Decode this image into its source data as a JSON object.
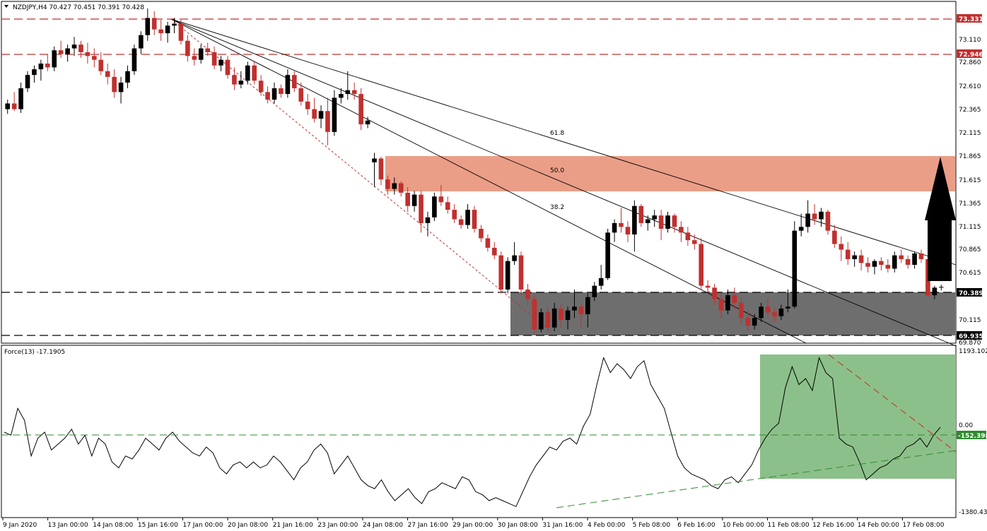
{
  "main_header": {
    "title": "NZDJPY,H4  70.427 70.451 70.391 70.428"
  },
  "force_header": {
    "title": "Force(13) -17.1905"
  },
  "colors": {
    "bull_candle": "#000000",
    "bear_candle": "#c0302e",
    "resistance_zone": "#e8937a",
    "support_zone": "#6e6e6e",
    "force_zone": "#8cc08a",
    "dashed_red": "#c0302e",
    "dashed_green": "#2e8b2e",
    "label_red_bg": "#c0302e",
    "label_black_bg": "#000000",
    "label_green_bg": "#2e8b2e"
  },
  "price_axis": {
    "ticks": [
      "73.110",
      "72.860",
      "72.610",
      "72.365",
      "72.115",
      "71.865",
      "71.615",
      "71.365",
      "71.115",
      "70.865",
      "70.615",
      "70.115",
      "69.870"
    ],
    "labels": [
      {
        "text": "73.331",
        "style": "red"
      },
      {
        "text": "72.946",
        "style": "red"
      },
      {
        "text": "70.389",
        "style": "black"
      },
      {
        "text": "69.935",
        "style": "black"
      }
    ]
  },
  "force_axis": {
    "ticks": [
      "1193.102",
      "0.00",
      "-1380.43"
    ],
    "labels": [
      {
        "text": "-152.398",
        "style": "green"
      }
    ]
  },
  "time_axis": {
    "labels": [
      "9 Jan 2020",
      "13 Jan 00:00",
      "14 Jan 08:00",
      "15 Jan 16:00",
      "17 Jan 00:00",
      "20 Jan 08:00",
      "21 Jan 16:00",
      "23 Jan 00:00",
      "24 Jan 08:00",
      "27 Jan 16:00",
      "29 Jan 00:00",
      "30 Jan 08:00",
      "31 Jan 16:00",
      "4 Feb 00:00",
      "5 Feb 08:00",
      "6 Feb 16:00",
      "10 Feb 00:00",
      "11 Feb 08:00",
      "12 Feb 16:00",
      "14 Feb 00:00",
      "17 Feb 08:00"
    ]
  },
  "fib_labels": [
    "61.8",
    "50.0",
    "38.2"
  ],
  "chart_data": {
    "type": "candlestick",
    "symbol": "NZDJPY",
    "timeframe": "H4",
    "ohlc_last": {
      "open": 70.427,
      "high": 70.451,
      "low": 70.391,
      "close": 70.428
    },
    "ylim": [
      69.85,
      73.42
    ],
    "horizontal_levels": [
      73.331,
      72.946,
      70.389,
      69.935
    ],
    "resistance_zone": [
      71.49,
      71.87
    ],
    "support_zone": [
      69.935,
      70.389
    ],
    "candles": [
      [
        72.3,
        72.4,
        72.25,
        72.36
      ],
      [
        72.36,
        72.48,
        72.28,
        72.3
      ],
      [
        72.3,
        72.58,
        72.26,
        72.52
      ],
      [
        72.52,
        72.7,
        72.48,
        72.66
      ],
      [
        72.66,
        72.76,
        72.58,
        72.72
      ],
      [
        72.72,
        72.82,
        72.6,
        72.78
      ],
      [
        72.78,
        72.88,
        72.7,
        72.74
      ],
      [
        72.74,
        72.96,
        72.7,
        72.92
      ],
      [
        72.92,
        73.02,
        72.84,
        72.88
      ],
      [
        72.88,
        72.98,
        72.8,
        72.94
      ],
      [
        72.94,
        73.06,
        72.86,
        72.98
      ],
      [
        72.98,
        73.02,
        72.84,
        72.9
      ],
      [
        72.9,
        73.0,
        72.78,
        72.86
      ],
      [
        72.86,
        72.94,
        72.74,
        72.82
      ],
      [
        72.82,
        72.9,
        72.66,
        72.7
      ],
      [
        72.7,
        72.78,
        72.56,
        72.64
      ],
      [
        72.64,
        72.72,
        72.42,
        72.48
      ],
      [
        72.48,
        72.64,
        72.36,
        72.58
      ],
      [
        72.58,
        72.76,
        72.52,
        72.7
      ],
      [
        72.7,
        72.98,
        72.66,
        72.94
      ],
      [
        72.94,
        73.12,
        72.88,
        73.08
      ],
      [
        73.08,
        73.36,
        73.02,
        73.26
      ],
      [
        73.26,
        73.331,
        73.08,
        73.14
      ],
      [
        73.14,
        73.24,
        73.02,
        73.1
      ],
      [
        73.1,
        73.22,
        73.0,
        73.18
      ],
      [
        73.18,
        73.26,
        73.1,
        73.2
      ],
      [
        73.2,
        73.24,
        72.98,
        73.02
      ],
      [
        73.02,
        73.08,
        72.8,
        72.86
      ],
      [
        72.86,
        72.94,
        72.76,
        72.82
      ],
      [
        72.82,
        72.98,
        72.78,
        72.94
      ],
      [
        72.94,
        73.0,
        72.86,
        72.9
      ],
      [
        72.9,
        72.96,
        72.72,
        72.76
      ],
      [
        72.76,
        72.86,
        72.7,
        72.82
      ],
      [
        72.82,
        72.86,
        72.62,
        72.66
      ],
      [
        72.66,
        72.74,
        72.5,
        72.56
      ],
      [
        72.56,
        72.7,
        72.52,
        72.6
      ],
      [
        72.6,
        72.8,
        72.56,
        72.76
      ],
      [
        72.76,
        72.8,
        72.56,
        72.6
      ],
      [
        72.6,
        72.66,
        72.44,
        72.48
      ],
      [
        72.48,
        72.54,
        72.36,
        72.4
      ],
      [
        72.4,
        72.58,
        72.36,
        72.52
      ],
      [
        72.52,
        72.56,
        72.42,
        72.46
      ],
      [
        72.46,
        72.72,
        72.42,
        72.66
      ],
      [
        72.66,
        72.7,
        72.48,
        72.52
      ],
      [
        72.52,
        72.58,
        72.34,
        72.38
      ],
      [
        72.38,
        72.46,
        72.24,
        72.3
      ],
      [
        72.3,
        72.42,
        72.16,
        72.2
      ],
      [
        72.2,
        72.34,
        72.1,
        72.28
      ],
      [
        72.28,
        72.42,
        71.92,
        72.06
      ],
      [
        72.06,
        72.5,
        72.02,
        72.42
      ],
      [
        72.42,
        72.52,
        72.36,
        72.46
      ],
      [
        72.46,
        72.7,
        72.4,
        72.5
      ],
      [
        72.5,
        72.58,
        72.4,
        72.46
      ],
      [
        72.46,
        72.52,
        72.08,
        72.14
      ],
      [
        72.14,
        72.22,
        72.1,
        72.18
      ],
      [
        71.74,
        71.84,
        71.48,
        71.78
      ],
      [
        71.78,
        71.8,
        71.5,
        71.56
      ],
      [
        71.56,
        71.6,
        71.4,
        71.46
      ],
      [
        71.46,
        71.58,
        71.4,
        71.52
      ],
      [
        71.52,
        71.54,
        71.38,
        71.42
      ],
      [
        71.42,
        71.48,
        71.22,
        71.28
      ],
      [
        71.28,
        71.44,
        71.22,
        71.4
      ],
      [
        71.4,
        71.44,
        71.0,
        71.1
      ],
      [
        71.1,
        71.22,
        70.96,
        71.16
      ],
      [
        71.16,
        71.42,
        71.12,
        71.38
      ],
      [
        71.38,
        71.5,
        71.28,
        71.32
      ],
      [
        71.32,
        71.38,
        71.2,
        71.24
      ],
      [
        71.24,
        71.3,
        71.1,
        71.14
      ],
      [
        71.14,
        71.18,
        71.04,
        71.08
      ],
      [
        71.08,
        71.3,
        71.04,
        71.24
      ],
      [
        71.24,
        71.28,
        71.0,
        71.04
      ],
      [
        71.04,
        71.08,
        70.9,
        70.94
      ],
      [
        70.94,
        70.98,
        70.8,
        70.84
      ],
      [
        70.84,
        70.9,
        70.72,
        70.76
      ],
      [
        70.76,
        70.8,
        70.36,
        70.4
      ],
      [
        70.4,
        70.74,
        70.36,
        70.7
      ],
      [
        70.7,
        70.9,
        70.66,
        70.76
      ],
      [
        70.76,
        70.8,
        70.34,
        70.4
      ],
      [
        70.4,
        70.46,
        70.24,
        70.3
      ],
      [
        70.3,
        70.34,
        69.94,
        69.98
      ],
      [
        69.98,
        70.2,
        69.95,
        70.16
      ],
      [
        70.16,
        70.22,
        69.96,
        70.0
      ],
      [
        70.0,
        70.26,
        69.96,
        70.2
      ],
      [
        70.2,
        70.24,
        70.0,
        70.08
      ],
      [
        70.08,
        70.22,
        69.98,
        70.18
      ],
      [
        70.18,
        70.4,
        70.1,
        70.22
      ],
      [
        70.22,
        70.26,
        70.0,
        70.14
      ],
      [
        70.14,
        70.36,
        70.0,
        70.32
      ],
      [
        70.32,
        70.48,
        70.28,
        70.44
      ],
      [
        70.44,
        70.66,
        70.4,
        70.52
      ],
      [
        70.52,
        71.04,
        70.5,
        71.0
      ],
      [
        71.0,
        71.14,
        70.9,
        71.1
      ],
      [
        71.1,
        71.26,
        71.0,
        71.06
      ],
      [
        71.06,
        71.12,
        70.9,
        70.98
      ],
      [
        70.98,
        71.34,
        70.8,
        71.28
      ],
      [
        71.28,
        71.3,
        71.06,
        71.1
      ],
      [
        71.1,
        71.18,
        71.02,
        71.14
      ],
      [
        71.14,
        71.24,
        71.06,
        71.18
      ],
      [
        71.18,
        71.24,
        70.92,
        71.04
      ],
      [
        71.04,
        71.22,
        71.0,
        71.18
      ],
      [
        71.18,
        71.2,
        71.0,
        71.06
      ],
      [
        71.06,
        71.12,
        70.9,
        71.0
      ],
      [
        71.0,
        71.06,
        70.86,
        70.92
      ],
      [
        70.92,
        70.98,
        70.82,
        70.88
      ],
      [
        70.88,
        70.94,
        70.4,
        70.44
      ],
      [
        70.44,
        70.5,
        70.36,
        70.42
      ],
      [
        70.42,
        70.46,
        70.24,
        70.3
      ],
      [
        70.3,
        70.36,
        70.1,
        70.18
      ],
      [
        70.18,
        70.4,
        70.14,
        70.34
      ],
      [
        70.34,
        70.42,
        70.2,
        70.26
      ],
      [
        70.26,
        70.32,
        70.04,
        70.1
      ],
      [
        70.1,
        70.18,
        69.96,
        70.02
      ],
      [
        70.02,
        70.14,
        69.98,
        70.1
      ],
      [
        70.1,
        70.26,
        70.06,
        70.22
      ],
      [
        70.22,
        70.3,
        70.1,
        70.16
      ],
      [
        70.16,
        70.2,
        70.06,
        70.12
      ],
      [
        70.12,
        70.24,
        70.08,
        70.2
      ],
      [
        70.2,
        70.4,
        70.16,
        70.22
      ],
      [
        70.22,
        71.12,
        70.2,
        71.02
      ],
      [
        71.02,
        71.2,
        70.96,
        71.06
      ],
      [
        71.06,
        71.34,
        71.0,
        71.2
      ],
      [
        71.2,
        71.3,
        71.08,
        71.14
      ],
      [
        71.14,
        71.26,
        71.06,
        71.22
      ],
      [
        71.22,
        71.24,
        70.98,
        71.02
      ],
      [
        71.02,
        71.08,
        70.84,
        70.88
      ],
      [
        70.88,
        70.96,
        70.7,
        70.82
      ],
      [
        70.82,
        70.9,
        70.66,
        70.72
      ],
      [
        70.72,
        70.8,
        70.64,
        70.76
      ],
      [
        70.76,
        70.82,
        70.6,
        70.68
      ],
      [
        70.68,
        70.74,
        70.58,
        70.64
      ],
      [
        70.64,
        70.72,
        70.56,
        70.7
      ],
      [
        70.7,
        70.74,
        70.6,
        70.66
      ],
      [
        70.66,
        70.72,
        70.58,
        70.62
      ],
      [
        70.62,
        70.8,
        70.58,
        70.76
      ],
      [
        70.76,
        70.82,
        70.68,
        70.72
      ],
      [
        70.72,
        70.76,
        70.62,
        70.66
      ],
      [
        70.66,
        70.8,
        70.62,
        70.78
      ],
      [
        70.78,
        70.82,
        70.68,
        70.72
      ],
      [
        70.72,
        70.76,
        70.32,
        70.34
      ],
      [
        70.34,
        70.44,
        70.3,
        70.42
      ],
      [
        70.427,
        70.451,
        70.391,
        70.428
      ]
    ],
    "force": {
      "name": "Force(13)",
      "last_value": -17.1905,
      "level": -152.398,
      "ylim": [
        -1380.43,
        1193.102
      ],
      "values": [
        -100,
        -150,
        300,
        100,
        -500,
        -200,
        -100,
        -400,
        -300,
        -200,
        -50,
        -300,
        -150,
        -500,
        -200,
        -300,
        -600,
        -700,
        -500,
        -550,
        -400,
        -200,
        -300,
        -400,
        -200,
        -100,
        -250,
        -350,
        -450,
        -500,
        -350,
        -450,
        -700,
        -800,
        -650,
        -600,
        -700,
        -600,
        -700,
        -650,
        -500,
        -600,
        -750,
        -900,
        -700,
        -600,
        -400,
        -300,
        -450,
        -800,
        -650,
        -500,
        -700,
        -900,
        -1000,
        -1050,
        -900,
        -1100,
        -1250,
        -1150,
        -1050,
        -1200,
        -1300,
        -1100,
        -1050,
        -950,
        -1000,
        -1050,
        -850,
        -900,
        -1100,
        -1150,
        -1250,
        -1200,
        -1250,
        -1300,
        -1350,
        -1100,
        -850,
        -650,
        -500,
        -350,
        -400,
        -250,
        -200,
        -300,
        0,
        200,
        700,
        1150,
        900,
        1050,
        950,
        800,
        1000,
        1100,
        700,
        500,
        300,
        -100,
        -500,
        -700,
        -800,
        -850,
        -900,
        -1000,
        -1050,
        -900,
        -850,
        -950,
        -800,
        -650,
        -400,
        -200,
        -50,
        50,
        650,
        1000,
        700,
        800,
        600,
        1150,
        900,
        800,
        -200,
        -300,
        -350,
        -600,
        -900,
        -800,
        -700,
        -650,
        -550,
        -500,
        -350,
        -300,
        -200,
        -350,
        -150,
        -17
      ]
    }
  }
}
